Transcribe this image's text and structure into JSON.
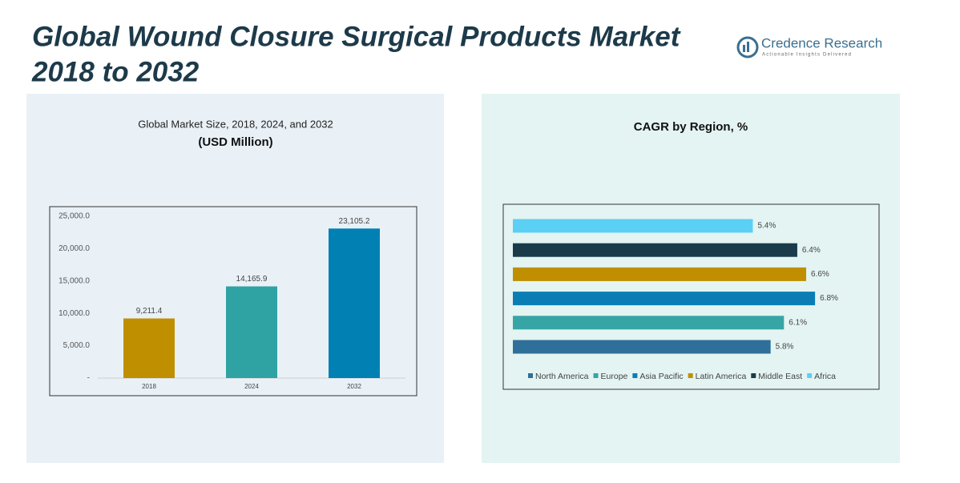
{
  "title": [
    "Global Wound Closure Surgical Products Market",
    "2018 to 2032"
  ],
  "brand": {
    "name": "Credence Research",
    "tagline": "Actionable Insights Delivered"
  },
  "chart_data": [
    {
      "type": "bar",
      "title": "Global Market Size, 2018, 2024, and 2032",
      "subtitle": "(USD Million)",
      "categories": [
        "2018",
        "2024",
        "2032"
      ],
      "values": [
        9211.4,
        14165.9,
        23105.2
      ],
      "value_labels": [
        "9,211.4",
        "14,165.9",
        "23,105.2"
      ],
      "colors": [
        "#bf8f00",
        "#2fa3a3",
        "#0080b3"
      ],
      "ylim": [
        0,
        25000
      ],
      "yticks": [
        {
          "value": 0,
          "label": "-"
        },
        {
          "value": 5000,
          "label": "5,000.0"
        },
        {
          "value": 10000,
          "label": "10,000.0"
        },
        {
          "value": 15000,
          "label": "15,000.0"
        },
        {
          "value": 20000,
          "label": "20,000.0"
        },
        {
          "value": 25000,
          "label": "25,000.0"
        }
      ]
    },
    {
      "type": "barh",
      "title": "CAGR by Region, %",
      "series": [
        {
          "name": "North America",
          "color": "#2e7099",
          "values": [
            5.8
          ],
          "value_labels": [
            "5.8%"
          ]
        },
        {
          "name": "Europe",
          "color": "#37a5a5",
          "values": [
            6.1
          ],
          "value_labels": [
            "6.1%"
          ]
        },
        {
          "name": "Asia Pacific",
          "color": "#0a7eb4",
          "values": [
            6.8
          ],
          "value_labels": [
            "6.8%"
          ]
        },
        {
          "name": "Latin America",
          "color": "#bf8f00",
          "values": [
            6.6
          ],
          "value_labels": [
            "6.6%"
          ]
        },
        {
          "name": "Middle East",
          "color": "#1a3b4a",
          "values": [
            6.4
          ],
          "value_labels": [
            "6.4%"
          ]
        },
        {
          "name": "Africa",
          "color": "#5ccff5",
          "values": [
            5.4
          ],
          "value_labels": [
            "5.4%"
          ]
        }
      ]
    }
  ]
}
